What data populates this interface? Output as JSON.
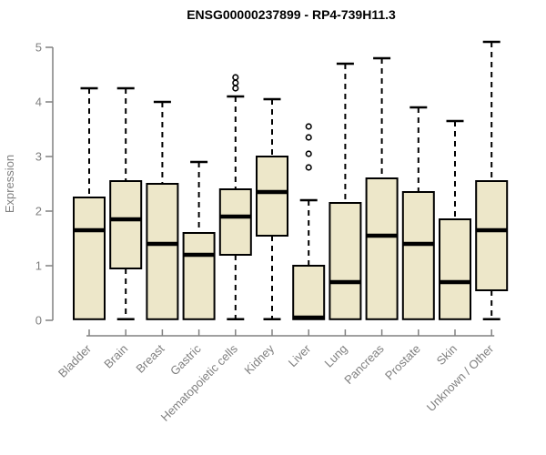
{
  "chart_data": {
    "type": "box",
    "title": "ENSG00000237899 - RP4-739H11.3",
    "ylabel": "Expression",
    "xlabel": "",
    "ylim": [
      0,
      5
    ],
    "yticks": [
      0,
      1,
      2,
      3,
      4,
      5
    ],
    "grid": false,
    "legend": false,
    "categories": [
      "Bladder",
      "Brain",
      "Breast",
      "Gastric",
      "Hematopoietic cells",
      "Kidney",
      "Liver",
      "Lung",
      "Pancreas",
      "Prostate",
      "Skin",
      "Unknown / Other"
    ],
    "series": [
      {
        "category": "Bladder",
        "whisker_low": 0.02,
        "q1": 0.02,
        "median": 1.65,
        "q3": 2.25,
        "whisker_high": 4.25,
        "outliers": []
      },
      {
        "category": "Brain",
        "whisker_low": 0.02,
        "q1": 0.95,
        "median": 1.85,
        "q3": 2.55,
        "whisker_high": 4.25,
        "outliers": []
      },
      {
        "category": "Breast",
        "whisker_low": 0.02,
        "q1": 0.02,
        "median": 1.4,
        "q3": 2.5,
        "whisker_high": 4.0,
        "outliers": []
      },
      {
        "category": "Gastric",
        "whisker_low": 0.02,
        "q1": 0.02,
        "median": 1.2,
        "q3": 1.6,
        "whisker_high": 2.9,
        "outliers": []
      },
      {
        "category": "Hematopoietic cells",
        "whisker_low": 0.02,
        "q1": 1.2,
        "median": 1.9,
        "q3": 2.4,
        "whisker_high": 4.1,
        "outliers": [
          4.25,
          4.35,
          4.45
        ]
      },
      {
        "category": "Kidney",
        "whisker_low": 0.02,
        "q1": 1.55,
        "median": 2.35,
        "q3": 3.0,
        "whisker_high": 4.05,
        "outliers": []
      },
      {
        "category": "Liver",
        "whisker_low": 0.02,
        "q1": 0.02,
        "median": 0.05,
        "q3": 1.0,
        "whisker_high": 2.2,
        "outliers": [
          2.8,
          3.05,
          3.35,
          3.55
        ]
      },
      {
        "category": "Lung",
        "whisker_low": 0.02,
        "q1": 0.02,
        "median": 0.7,
        "q3": 2.15,
        "whisker_high": 4.7,
        "outliers": []
      },
      {
        "category": "Pancreas",
        "whisker_low": 0.02,
        "q1": 0.02,
        "median": 1.55,
        "q3": 2.6,
        "whisker_high": 4.8,
        "outliers": []
      },
      {
        "category": "Prostate",
        "whisker_low": 0.02,
        "q1": 0.02,
        "median": 1.4,
        "q3": 2.35,
        "whisker_high": 3.9,
        "outliers": []
      },
      {
        "category": "Skin",
        "whisker_low": 0.02,
        "q1": 0.02,
        "median": 0.7,
        "q3": 1.85,
        "whisker_high": 3.65,
        "outliers": []
      },
      {
        "category": "Unknown / Other",
        "whisker_low": 0.02,
        "q1": 0.55,
        "median": 1.65,
        "q3": 2.55,
        "whisker_high": 5.1,
        "outliers": []
      }
    ]
  },
  "colors": {
    "box_fill": "#EDE7C9",
    "box_border": "#000000",
    "median": "#000000",
    "whisker": "#000000",
    "outlier": "#000000",
    "axis": "#808080",
    "tick_label": "#808080",
    "title": "#000000",
    "background": "#FFFFFF"
  }
}
